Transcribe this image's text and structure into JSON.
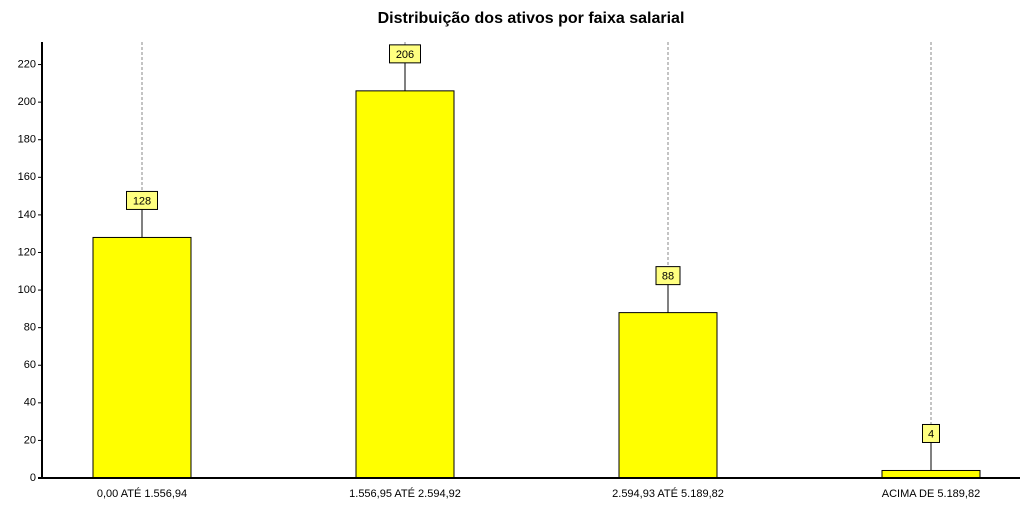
{
  "chart_data": {
    "type": "bar",
    "title": "Distribuição dos ativos por faixa salarial",
    "categories": [
      "0,00 ATÉ 1.556,94",
      "1.556,95 ATÉ 2.594,92",
      "2.594,93 ATÉ 5.189,82",
      "ACIMA DE 5.189,82"
    ],
    "values": [
      128,
      206,
      88,
      4
    ],
    "color": "#ffff00",
    "ylim": [
      0,
      232
    ],
    "yticks": [
      0,
      20,
      40,
      60,
      80,
      100,
      120,
      140,
      160,
      180,
      200,
      220
    ],
    "grid": true
  }
}
